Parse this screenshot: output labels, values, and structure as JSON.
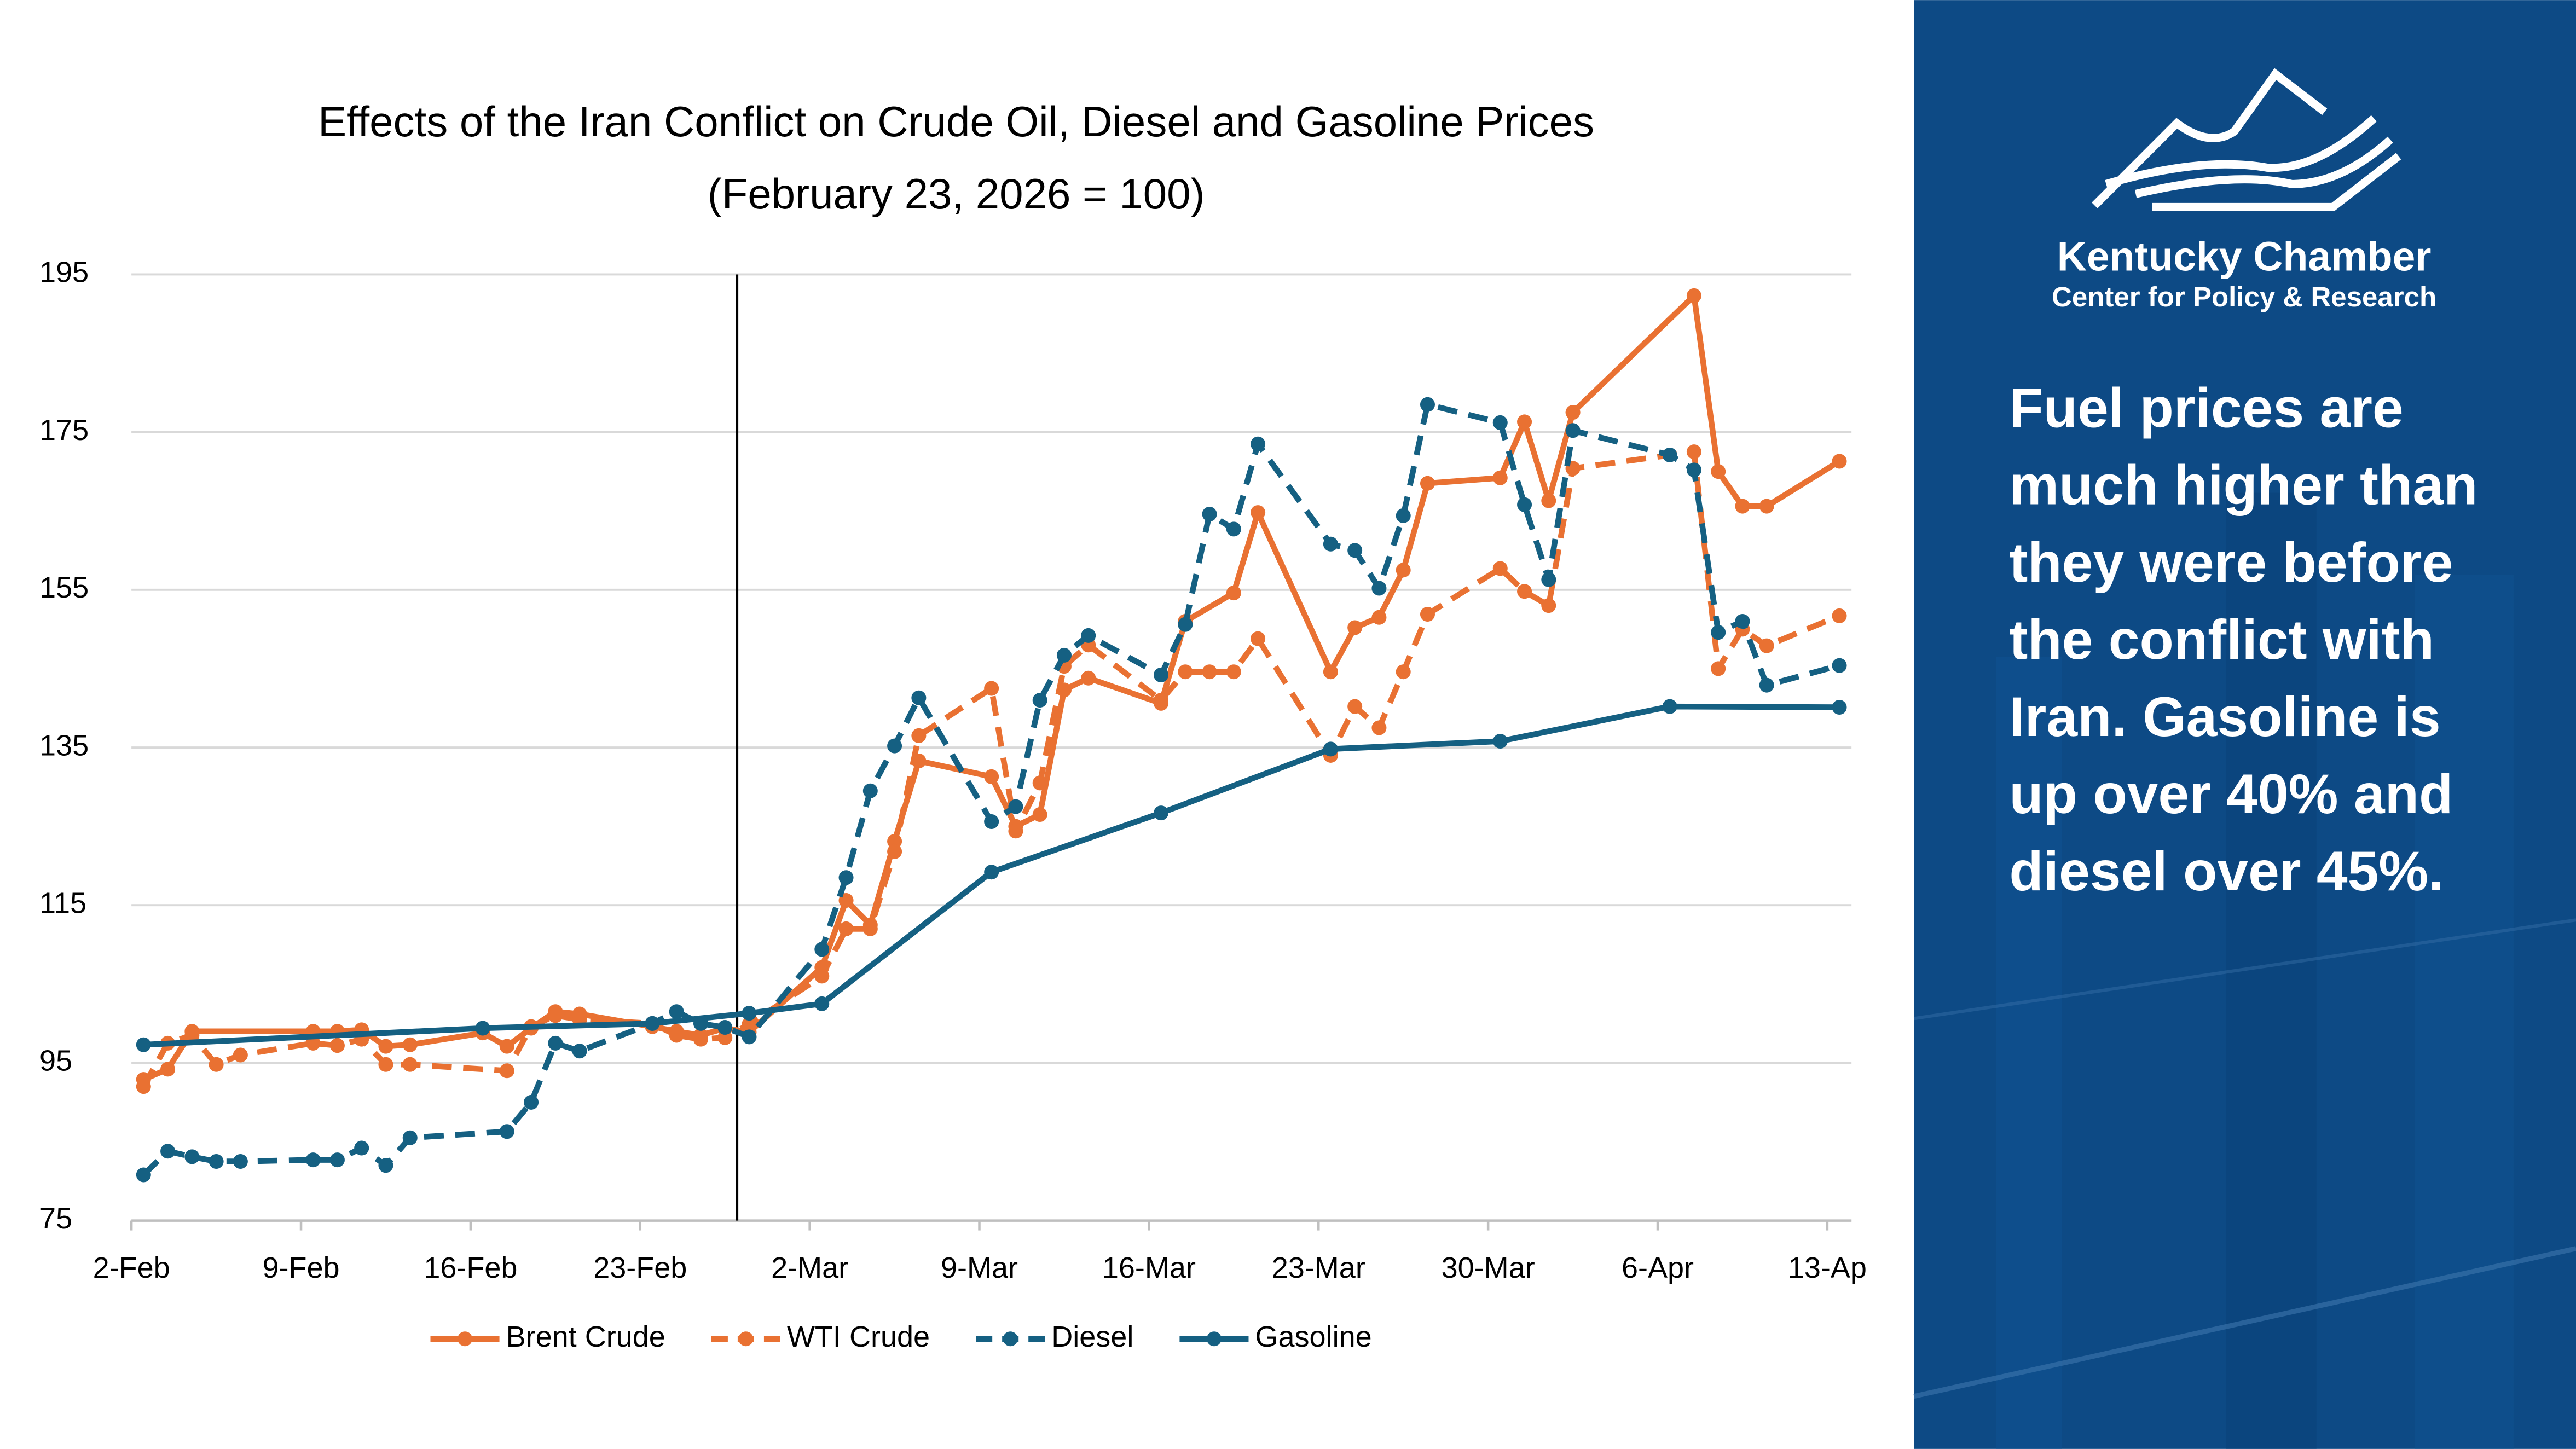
{
  "chart_data": {
    "type": "line",
    "title": "Effects of the Iran Conflict on Crude Oil, Diesel and Gasoline Prices",
    "subtitle": "(February 23, 2026 = 100)",
    "xlim": [
      "2-Feb",
      "14-Apr"
    ],
    "xticks": [
      "2-Feb",
      "9-Feb",
      "16-Feb",
      "23-Feb",
      "2-Mar",
      "9-Mar",
      "16-Mar",
      "23-Mar",
      "30-Mar",
      "6-Apr",
      {
        "value": "13-Apr",
        "label": "13-Ap"
      }
    ],
    "ylim": [
      75,
      195
    ],
    "yticks": [
      75,
      95,
      115,
      135,
      155,
      175,
      195
    ],
    "grid": true,
    "legend": "bottom",
    "event_line": "27-Feb",
    "series": [
      {
        "name": "Brent Crude",
        "color": "#e97132",
        "dashed": false,
        "x": [
          "2-Feb",
          "3-Feb",
          "4-Feb",
          "9-Feb",
          "10-Feb",
          "11-Feb",
          "12-Feb",
          "13-Feb",
          "16-Feb",
          "17-Feb",
          "18-Feb",
          "19-Feb",
          "20-Feb",
          "23-Feb",
          "24-Feb",
          "25-Feb",
          "26-Feb",
          "27-Feb",
          "2-Mar",
          "3-Mar",
          "4-Mar",
          "5-Mar",
          "6-Mar",
          "9-Mar",
          "10-Mar",
          "11-Mar",
          "12-Mar",
          "13-Mar",
          "16-Mar",
          "17-Mar",
          "19-Mar",
          "20-Mar",
          "23-Mar",
          "24-Mar",
          "25-Mar",
          "26-Mar",
          "27-Mar",
          "30-Mar",
          "31-Mar",
          "1-Apr",
          "2-Apr",
          "7-Apr",
          "8-Apr",
          "9-Apr",
          "10-Apr",
          "13-Apr"
        ],
        "values": [
          92.9,
          94.2,
          99,
          99,
          99,
          99.2,
          97.1,
          97.3,
          98.8,
          97.1,
          99.4,
          101.5,
          101.2,
          99.6,
          99,
          98.5,
          99.4,
          98.9,
          107.1,
          115.6,
          112.5,
          123.1,
          133.3,
          131.3,
          125,
          126.5,
          142.3,
          143.8,
          140.6,
          151,
          154.6,
          164.8,
          144.6,
          150.2,
          151.5,
          157.5,
          168.5,
          169.2,
          176.3,
          166.3,
          177.5,
          192.3,
          170,
          165.6,
          165.6,
          171.3
        ]
      },
      {
        "name": "WTI Crude",
        "color": "#e97132",
        "dashed": true,
        "x": [
          "2-Feb",
          "3-Feb",
          "4-Feb",
          "5-Feb",
          "6-Feb",
          "9-Feb",
          "10-Feb",
          "11-Feb",
          "12-Feb",
          "13-Feb",
          "17-Feb",
          "18-Feb",
          "19-Feb",
          "20-Feb",
          "23-Feb",
          "24-Feb",
          "25-Feb",
          "26-Feb",
          "27-Feb",
          "2-Mar",
          "3-Mar",
          "4-Mar",
          "5-Mar",
          "6-Mar",
          "9-Mar",
          "10-Mar",
          "11-Mar",
          "12-Mar",
          "13-Mar",
          "16-Mar",
          "17-Mar",
          "18-Mar",
          "19-Mar",
          "20-Mar",
          "23-Mar",
          "24-Mar",
          "25-Mar",
          "26-Mar",
          "27-Mar",
          "30-Mar",
          "31-Mar",
          "1-Apr",
          "2-Apr",
          "7-Apr",
          "8-Apr",
          "9-Apr",
          "10-Apr",
          "13-Apr"
        ],
        "values": [
          92,
          97.5,
          98.5,
          94.8,
          96,
          97.5,
          97.2,
          98,
          94.8,
          94.8,
          94,
          99.6,
          101,
          100.5,
          100,
          98.5,
          98,
          98.2,
          99.9,
          106,
          112,
          112,
          121.8,
          136.5,
          142.5,
          124.4,
          130.5,
          145.3,
          148,
          141,
          144.6,
          144.6,
          144.6,
          148.8,
          134,
          140.2,
          137.5,
          144.6,
          151.9,
          157.7,
          154.8,
          153,
          170.4,
          172.5,
          145,
          150,
          147.9,
          151.7
        ]
      },
      {
        "name": "Diesel",
        "color": "#156082",
        "dashed": true,
        "x": [
          "2-Feb",
          "3-Feb",
          "4-Feb",
          "5-Feb",
          "6-Feb",
          "9-Feb",
          "10-Feb",
          "11-Feb",
          "12-Feb",
          "13-Feb",
          "17-Feb",
          "18-Feb",
          "19-Feb",
          "20-Feb",
          "23-Feb",
          "24-Feb",
          "25-Feb",
          "26-Feb",
          "27-Feb",
          "2-Mar",
          "3-Mar",
          "4-Mar",
          "5-Mar",
          "6-Mar",
          "9-Mar",
          "10-Mar",
          "11-Mar",
          "12-Mar",
          "13-Mar",
          "16-Mar",
          "17-Mar",
          "18-Mar",
          "19-Mar",
          "20-Mar",
          "23-Mar",
          "24-Mar",
          "25-Mar",
          "26-Mar",
          "27-Mar",
          "30-Mar",
          "31-Mar",
          "1-Apr",
          "2-Apr",
          "6-Apr",
          "7-Apr",
          "8-Apr",
          "9-Apr",
          "10-Apr",
          "13-Apr"
        ],
        "values": [
          80.8,
          83.8,
          83.1,
          82.5,
          82.5,
          82.7,
          82.7,
          84.2,
          82,
          85.5,
          86.3,
          90,
          97.5,
          96.5,
          100,
          101.5,
          100,
          99.5,
          98.3,
          109.4,
          118.5,
          129.5,
          135.2,
          141.3,
          125.6,
          127.5,
          141,
          146.7,
          149.2,
          144.2,
          150.6,
          164.6,
          162.7,
          173.5,
          160.8,
          160,
          155.2,
          164.4,
          178.5,
          176.2,
          165.8,
          156.3,
          175.2,
          172.1,
          170.2,
          149.6,
          151,
          142.9,
          145.4
        ]
      },
      {
        "name": "Gasoline",
        "color": "#156082",
        "dashed": false,
        "x": [
          "2-Feb",
          "16-Feb",
          "23-Feb",
          "27-Feb",
          "2-Mar",
          "9-Mar",
          "16-Mar",
          "23-Mar",
          "30-Mar",
          "6-Apr",
          "13-Apr"
        ],
        "values": [
          97.3,
          99.4,
          100,
          101.3,
          102.5,
          119.2,
          126.7,
          134.8,
          135.8,
          140.2,
          140.1
        ]
      }
    ]
  },
  "panel": {
    "org_name": "Kentucky Chamber",
    "org_sub": "Center for Policy & Research",
    "message_lines": [
      "Fuel prices are",
      "much higher than",
      "they were before",
      "the conflict with",
      "Iran. Gasoline is",
      "up over 40% and",
      "diesel over 45%."
    ]
  }
}
